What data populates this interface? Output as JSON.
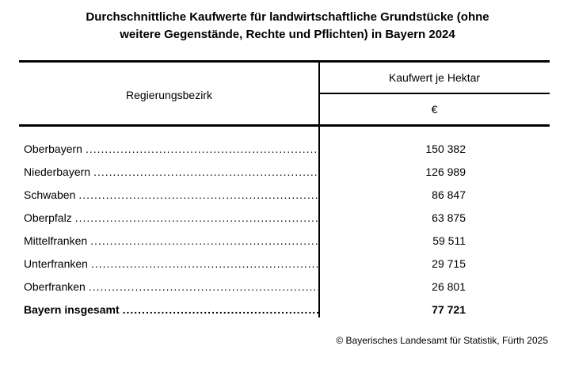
{
  "title": {
    "line1": "Durchschnittliche Kaufwerte für landwirtschaftliche Grundstücke (ohne",
    "line2": "weitere Gegenstände, Rechte und Pflichten) in Bayern 2024"
  },
  "table": {
    "col1_header": "Regierungsbezirk",
    "col2_header": "Kaufwert je Hektar",
    "col2_unit": "€",
    "rows": [
      {
        "label": "Oberbayern",
        "value": "150 382"
      },
      {
        "label": "Niederbayern",
        "value": "126 989"
      },
      {
        "label": "Schwaben",
        "value": "86 847"
      },
      {
        "label": "Oberpfalz",
        "value": "63 875"
      },
      {
        "label": "Mittelfranken",
        "value": "59 511"
      },
      {
        "label": "Unterfranken",
        "value": "29 715"
      },
      {
        "label": "Oberfranken",
        "value": "26 801"
      },
      {
        "label": "Bayern insgesamt",
        "value": "77 721"
      }
    ]
  },
  "footer": {
    "copyright": "© Bayerisches Landesamt für Statistik, Fürth 2025"
  },
  "colors": {
    "text": "#000000",
    "background": "#ffffff",
    "border": "#000000"
  }
}
